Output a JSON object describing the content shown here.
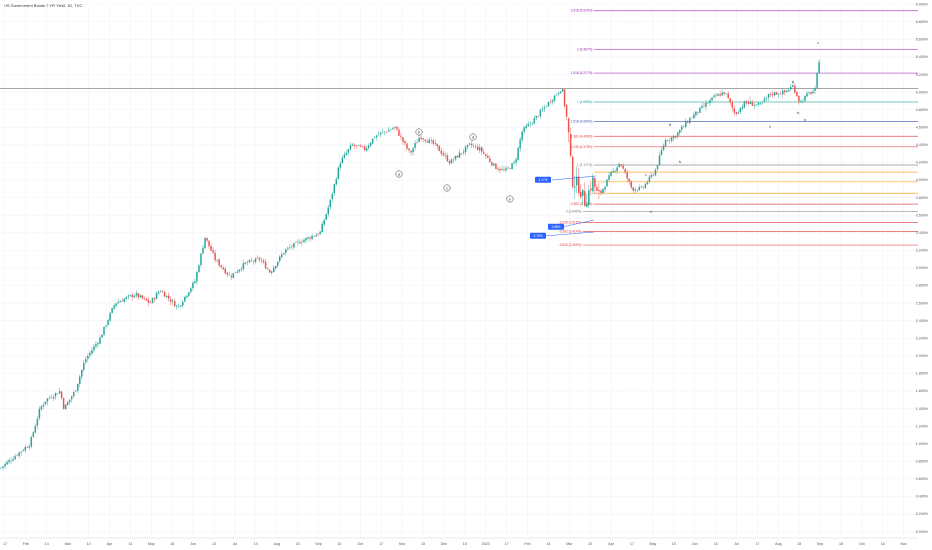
{
  "title": "US Government Bonds 2 YR Yield, 1D, TVC",
  "chart_data": {
    "type": "candlestick",
    "title": "US Government Bonds 2 YR Yield, 1D, TVC",
    "xlabel": "",
    "ylabel": "",
    "ylim": [
      -0.05,
      6.0
    ],
    "y_tick_labels": [
      "6.000%",
      "5.800%",
      "5.600%",
      "5.400%",
      "5.200%",
      "5.000%",
      "4.800%",
      "4.600%",
      "4.400%",
      "4.200%",
      "4.000%",
      "3.800%",
      "3.600%",
      "3.400%",
      "3.200%",
      "3.000%",
      "2.800%",
      "2.600%",
      "2.400%",
      "2.200%",
      "2.000%",
      "1.800%",
      "1.600%",
      "1.400%",
      "1.200%",
      "1.000%",
      "0.800%",
      "0.600%",
      "0.400%",
      "0.200%",
      "0.000%"
    ],
    "x_tick_labels": [
      "17",
      "Feb",
      "14",
      "Mar",
      "14",
      "Apr",
      "13",
      "May",
      "16",
      "Jun",
      "13",
      "Jul",
      "14",
      "Aug",
      "15",
      "Sep",
      "15",
      "Oct",
      "17",
      "Nov",
      "15",
      "Dec",
      "15",
      "2023",
      "17",
      "Feb",
      "14",
      "Mar",
      "20",
      "Apr",
      "17",
      "May",
      "15",
      "Jun",
      "15",
      "Jul",
      "17",
      "Aug",
      "15",
      "Sep",
      "18",
      "Oct",
      "16",
      "Nov",
      "20"
    ],
    "current_price_level": 5.04,
    "price_badges": [
      "4.17%",
      "3.88%",
      "3.75%"
    ],
    "fib_levels": [
      {
        "label": "2.618 (5.926%)",
        "value": 5.926,
        "color": "#9c27b0"
      },
      {
        "label": "2 (5.487%)",
        "value": 5.487,
        "color": "#9c27b0"
      },
      {
        "label": "1.618 (5.217%)",
        "value": 5.217,
        "color": "#9c27b0"
      },
      {
        "label": "1 (4.888%)",
        "value": 4.888,
        "color": "#26a69a"
      },
      {
        "label": "1.618 (4.666%)",
        "value": 4.666,
        "color": "#3f51b5"
      },
      {
        "label": "1.382 (4.498%)",
        "value": 4.498,
        "color": "#e53935"
      },
      {
        "label": "1.236 (4.378%)",
        "value": 4.378,
        "color": "#e53935"
      },
      {
        "label": "1 (4.171%)",
        "value": 4.171,
        "color": "#787b86"
      },
      {
        "label": "",
        "value": 4.09,
        "color": "#ff9800"
      },
      {
        "label": "",
        "value": 3.98,
        "color": "#ff9800"
      },
      {
        "label": "",
        "value": 3.85,
        "color": "#ff9800"
      },
      {
        "label": "0.382 (3.726%)",
        "value": 3.726,
        "color": "#e53935"
      },
      {
        "label": "0 (3.640%)",
        "value": 3.64,
        "color": "#787b86"
      },
      {
        "label": "-0.236 (3.515%)",
        "value": 3.515,
        "color": "#e53935"
      },
      {
        "label": "-0.382 (3.414%)",
        "value": 3.414,
        "color": "#e53935"
      },
      {
        "label": "-0.618 (3.260%)",
        "value": 3.26,
        "color": "#e53935"
      }
    ],
    "circled_labels": [
      "a",
      "b",
      "c",
      "d",
      "e"
    ],
    "wave_labels": [
      "ii",
      "iii",
      "iv",
      "v",
      "i",
      "ii",
      "iii",
      "iv",
      "v",
      "iv"
    ],
    "colors": {
      "up": "#26a69a",
      "down": "#ef5350",
      "wick": "#555555",
      "grid": "#f0f3fa",
      "axis_text": "#555555",
      "current_line": "#888888",
      "badge": "#2962ff"
    }
  }
}
